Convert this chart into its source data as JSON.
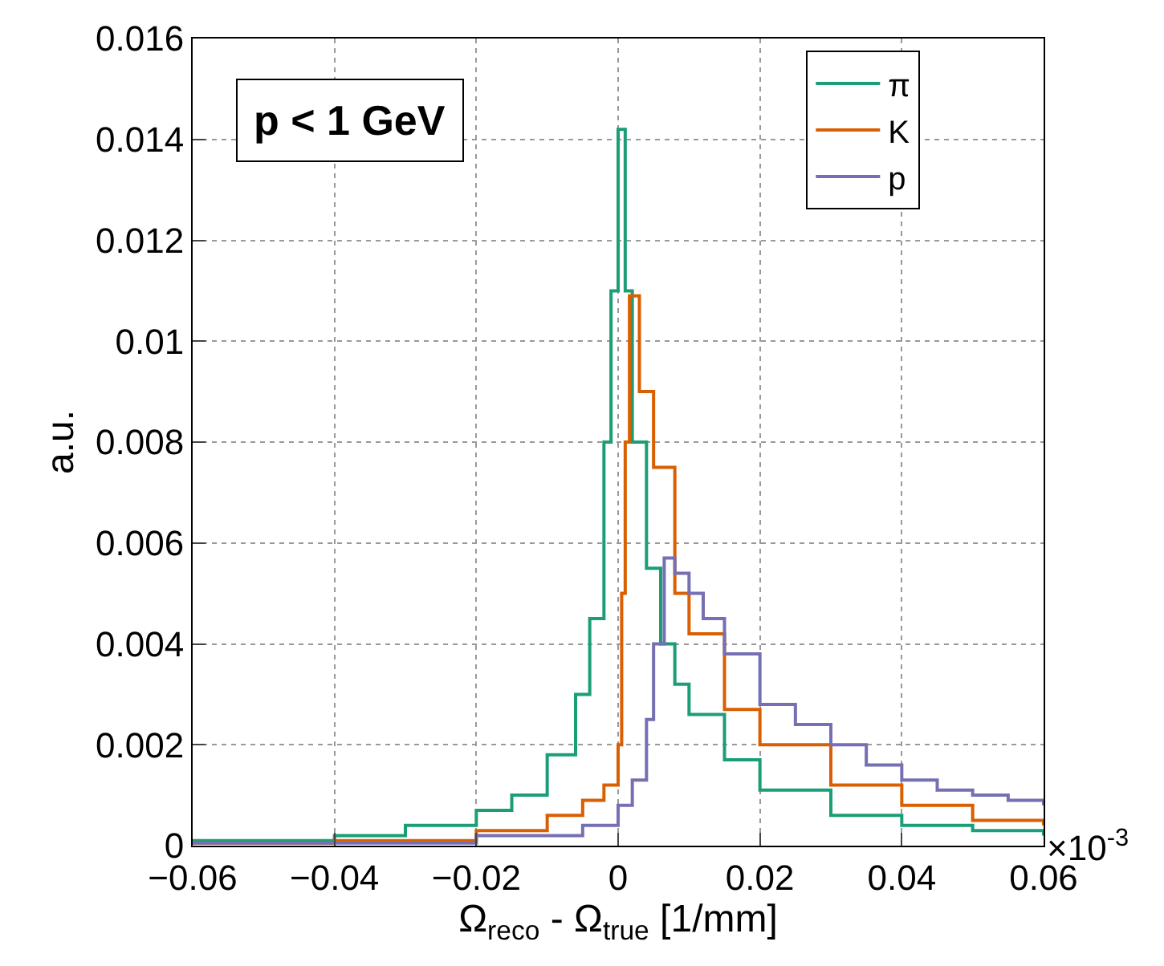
{
  "chart_data": {
    "type": "step",
    "xlabel": "Ω$_{reco}$ - Ω$_{true}$ [1/mm]",
    "ylabel": "a.u.",
    "annotations": [
      "p < 1 GeV",
      "×10$^{-3}$"
    ],
    "xlim": [
      -0.06,
      0.06
    ],
    "xticks": [
      {
        "value": -0.06,
        "label": "−0.06"
      },
      {
        "value": -0.04,
        "label": "−0.04"
      },
      {
        "value": -0.02,
        "label": "−0.02"
      },
      0,
      0.02,
      0.04,
      0.06
    ],
    "ylim": [
      0,
      0.016
    ],
    "yticks": [
      0,
      0.002,
      0.004,
      0.006,
      0.008,
      0.01,
      0.012,
      0.014,
      0.016
    ],
    "grid": true,
    "legend": "top right",
    "marker": "none",
    "line_style": "solid",
    "series": [
      {
        "name": "π",
        "color": "#1b9e77",
        "x": [
          -0.06,
          -0.04,
          -0.03,
          -0.02,
          -0.015,
          -0.01,
          -0.006,
          -0.004,
          -0.002,
          -0.001,
          0,
          0.001,
          0.002,
          0.004,
          0.006,
          0.008,
          0.01,
          0.015,
          0.02,
          0.03,
          0.04,
          0.05,
          0.06
        ],
        "values": [
          0.0001,
          0.0002,
          0.0004,
          0.0007,
          0.001,
          0.0018,
          0.003,
          0.0045,
          0.008,
          0.011,
          0.0142,
          0.011,
          0.008,
          0.0055,
          0.004,
          0.0032,
          0.0026,
          0.0017,
          0.0011,
          0.0006,
          0.0004,
          0.0003,
          0.0002
        ]
      },
      {
        "name": "K",
        "color": "#d95f02",
        "x": [
          -0.06,
          -0.04,
          -0.02,
          -0.01,
          -0.005,
          -0.002,
          0,
          0.0005,
          0.001,
          0.0016,
          0.003,
          0.005,
          0.008,
          0.01,
          0.015,
          0.02,
          0.03,
          0.04,
          0.05,
          0.06
        ],
        "values": [
          5e-05,
          0.0001,
          0.0003,
          0.0006,
          0.0009,
          0.0012,
          0.002,
          0.005,
          0.008,
          0.0109,
          0.009,
          0.0075,
          0.005,
          0.0042,
          0.0027,
          0.002,
          0.0012,
          0.0008,
          0.0005,
          0.0004
        ]
      },
      {
        "name": "p",
        "color": "#7570b3",
        "x": [
          -0.06,
          -0.02,
          -0.005,
          0,
          0.002,
          0.004,
          0.005,
          0.0065,
          0.008,
          0.01,
          0.012,
          0.015,
          0.02,
          0.025,
          0.03,
          0.035,
          0.04,
          0.045,
          0.05,
          0.055,
          0.06
        ],
        "values": [
          5e-05,
          0.0002,
          0.0004,
          0.0008,
          0.0013,
          0.0025,
          0.004,
          0.0057,
          0.0054,
          0.005,
          0.0045,
          0.0038,
          0.0028,
          0.0024,
          0.002,
          0.0016,
          0.0013,
          0.0011,
          0.001,
          0.0009,
          0.0008
        ]
      }
    ]
  }
}
